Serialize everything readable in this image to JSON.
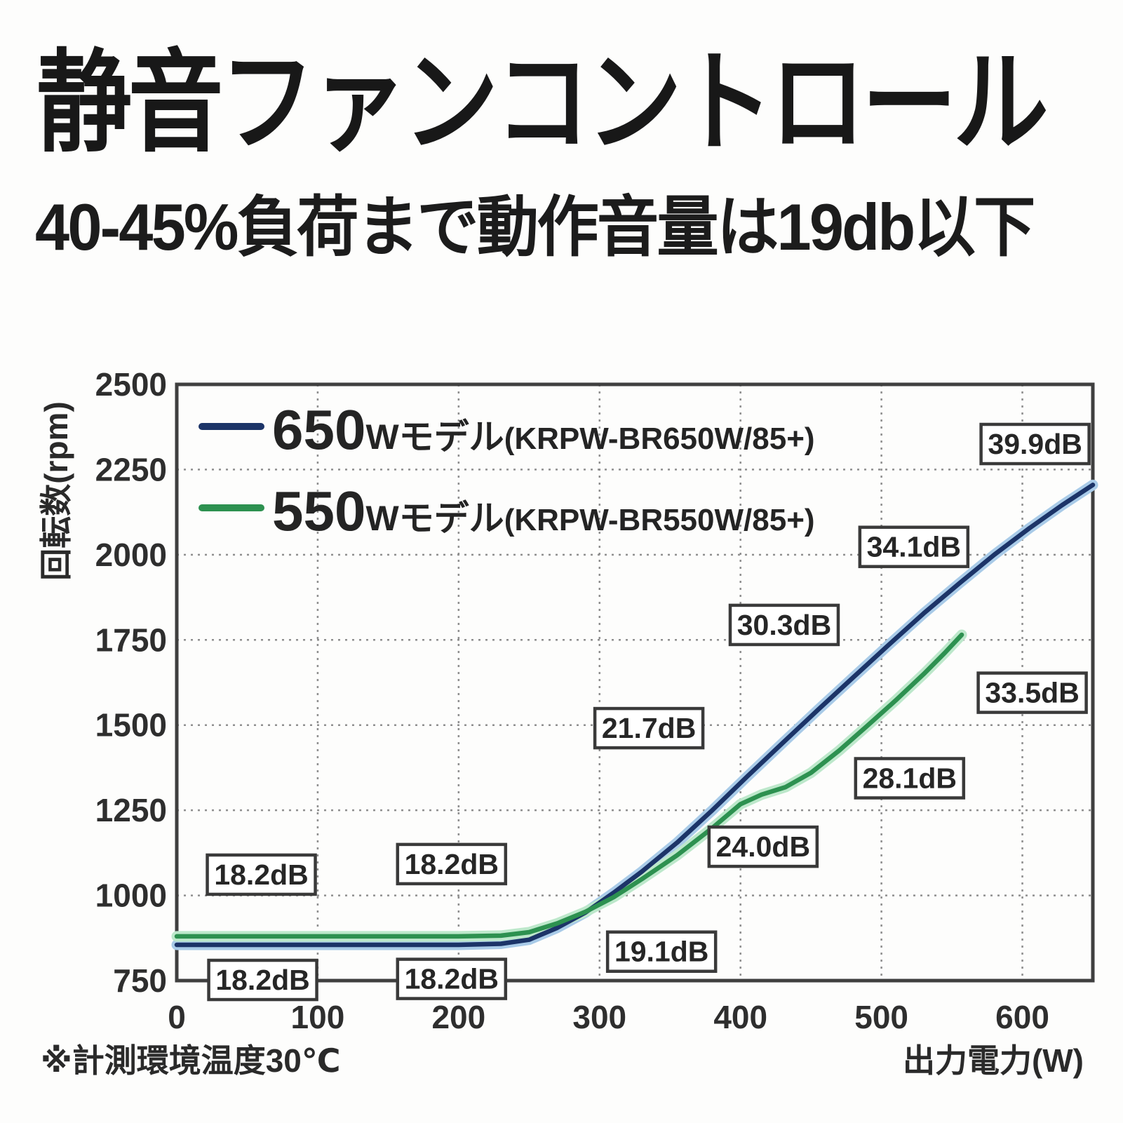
{
  "header": {
    "title": "静音ファンコントロール",
    "subtitle": "40-45%負荷まで動作音量は19db以下"
  },
  "footer": {
    "note": "※計測環境温度30℃"
  },
  "colors": {
    "series_650": "#1c3468",
    "series_650_halo": "#a9cbe8",
    "series_550": "#2d9150",
    "series_550_halo": "#bde8cb",
    "grid": "#8f8f8f",
    "plot_border": "#3f3f3f",
    "annotation_border": "#3a3a3a",
    "annotation_bg": "#ffffff"
  },
  "chart_data": {
    "type": "line",
    "title": "",
    "xlabel": "出力電力(W)",
    "ylabel": "回転数(rpm)",
    "xlim": [
      0,
      650
    ],
    "ylim": [
      750,
      2500
    ],
    "x_ticks": [
      0,
      100,
      200,
      300,
      400,
      500,
      600
    ],
    "y_ticks": [
      750,
      1000,
      1250,
      1500,
      1750,
      2000,
      2250,
      2500
    ],
    "grid": "dotted",
    "legend_position": "top-left-inside",
    "series": [
      {
        "name": "650Wモデル(KRPW-BR650W/85+)",
        "legend_big": "650",
        "legend_mid": "Wモデル",
        "legend_small": "(KRPW-BR650W/85+)",
        "color": "#1c3468",
        "halo": "#a9cbe8",
        "points": [
          [
            0,
            855
          ],
          [
            50,
            855
          ],
          [
            100,
            855
          ],
          [
            150,
            855
          ],
          [
            200,
            855
          ],
          [
            230,
            858
          ],
          [
            250,
            870
          ],
          [
            270,
            905
          ],
          [
            290,
            950
          ],
          [
            310,
            1008
          ],
          [
            330,
            1070
          ],
          [
            355,
            1155
          ],
          [
            380,
            1250
          ],
          [
            405,
            1350
          ],
          [
            430,
            1448
          ],
          [
            455,
            1545
          ],
          [
            480,
            1640
          ],
          [
            505,
            1735
          ],
          [
            530,
            1828
          ],
          [
            555,
            1915
          ],
          [
            580,
            2000
          ],
          [
            605,
            2078
          ],
          [
            628,
            2145
          ],
          [
            650,
            2205
          ]
        ]
      },
      {
        "name": "550Wモデル(KRPW-BR550W/85+)",
        "legend_big": "550",
        "legend_mid": "Wモデル",
        "legend_small": "(KRPW-BR550W/85+)",
        "color": "#2d9150",
        "halo": "#bde8cb",
        "points": [
          [
            0,
            880
          ],
          [
            50,
            880
          ],
          [
            100,
            880
          ],
          [
            150,
            880
          ],
          [
            200,
            880
          ],
          [
            230,
            882
          ],
          [
            250,
            892
          ],
          [
            270,
            918
          ],
          [
            290,
            952
          ],
          [
            310,
            995
          ],
          [
            330,
            1048
          ],
          [
            355,
            1118
          ],
          [
            380,
            1198
          ],
          [
            400,
            1268
          ],
          [
            415,
            1296
          ],
          [
            432,
            1318
          ],
          [
            450,
            1360
          ],
          [
            470,
            1425
          ],
          [
            490,
            1498
          ],
          [
            510,
            1572
          ],
          [
            530,
            1650
          ],
          [
            545,
            1712
          ],
          [
            557,
            1765
          ]
        ]
      }
    ],
    "annotations": [
      {
        "label": "39.9dB",
        "x": 609,
        "y": 2325
      },
      {
        "label": "34.1dB",
        "x": 523,
        "y": 2023
      },
      {
        "label": "30.3dB",
        "x": 431,
        "y": 1794
      },
      {
        "label": "33.5dB",
        "x": 607,
        "y": 1595
      },
      {
        "label": "21.7dB",
        "x": 335,
        "y": 1491
      },
      {
        "label": "28.1dB",
        "x": 520,
        "y": 1344
      },
      {
        "label": "24.0dB",
        "x": 416,
        "y": 1143
      },
      {
        "label": "18.2dB",
        "x": 60,
        "y": 1061
      },
      {
        "label": "18.2dB",
        "x": 195,
        "y": 1092
      },
      {
        "label": "19.1dB",
        "x": 344,
        "y": 835
      },
      {
        "label": "18.2dB",
        "x": 61,
        "y": 752
      },
      {
        "label": "18.2dB",
        "x": 195,
        "y": 755
      }
    ]
  }
}
